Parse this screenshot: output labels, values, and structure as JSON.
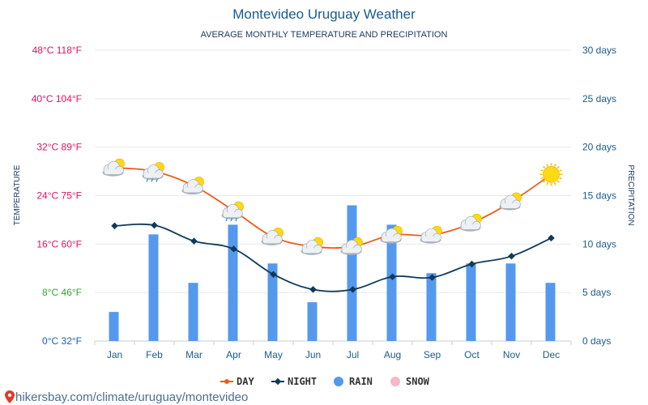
{
  "header": {
    "title": "Montevideo Uruguay Weather",
    "subtitle": "AVERAGE MONTHLY TEMPERATURE AND PRECIPITATION"
  },
  "footer": {
    "source_text": "hikersbay.com/climate/uruguay/montevideo"
  },
  "chart_data": {
    "type": "line",
    "title": "Montevideo Uruguay Weather",
    "subtitle": "AVERAGE MONTHLY TEMPERATURE AND PRECIPITATION",
    "categories": [
      "Jan",
      "Feb",
      "Mar",
      "Apr",
      "May",
      "Jun",
      "Jul",
      "Aug",
      "Sep",
      "Oct",
      "Nov",
      "Dec"
    ],
    "y_left": {
      "label": "TEMPERATURE",
      "range_c": [
        0,
        48
      ],
      "ticks": [
        "0°C 32°F",
        "8°C 46°F",
        "16°C 60°F",
        "24°C 75°F",
        "32°C 89°F",
        "40°C 104°F",
        "48°C 118°F"
      ],
      "tick_colors": [
        "#1060c0",
        "#2fa82f",
        "#e0115f",
        "#e0115f",
        "#e0115f",
        "#e0115f",
        "#e0115f"
      ]
    },
    "y_right": {
      "label": "PRECIPITATION",
      "range_days": [
        0,
        30
      ],
      "ticks": [
        "0 days",
        "5 days",
        "10 days",
        "15 days",
        "20 days",
        "25 days",
        "30 days"
      ]
    },
    "series": [
      {
        "name": "DAY",
        "type": "line",
        "color": "#f05a1a",
        "values": [
          28.6,
          28.0,
          25.6,
          21.5,
          17.2,
          15.6,
          15.6,
          17.5,
          17.5,
          19.5,
          23.0,
          27.5
        ]
      },
      {
        "name": "NIGHT",
        "type": "line",
        "color": "#0f3a5a",
        "values": [
          19.0,
          19.1,
          16.5,
          15.2,
          11.0,
          8.5,
          8.5,
          10.6,
          10.5,
          12.7,
          14.0,
          17.0
        ]
      },
      {
        "name": "RAIN",
        "type": "bar",
        "color": "#5599ee",
        "values": [
          3,
          11,
          6,
          12,
          8,
          4,
          14,
          12,
          7,
          8,
          8,
          6
        ]
      },
      {
        "name": "SNOW",
        "type": "bar",
        "color": "#f6b8c8",
        "values": [
          0,
          0,
          0,
          0,
          0,
          0,
          0,
          0,
          0,
          0,
          0,
          0
        ]
      }
    ],
    "weather_icons": [
      "partly-cloudy-icon",
      "partly-cloudy-rain-icon",
      "partly-cloudy-icon",
      "partly-cloudy-rain-icon",
      "partly-cloudy-icon",
      "partly-cloudy-icon",
      "partly-cloudy-icon",
      "partly-cloudy-icon",
      "partly-cloudy-icon",
      "partly-cloudy-icon",
      "partly-cloudy-icon",
      "sun-icon"
    ],
    "grid": true,
    "legend_position": "bottom-center"
  }
}
